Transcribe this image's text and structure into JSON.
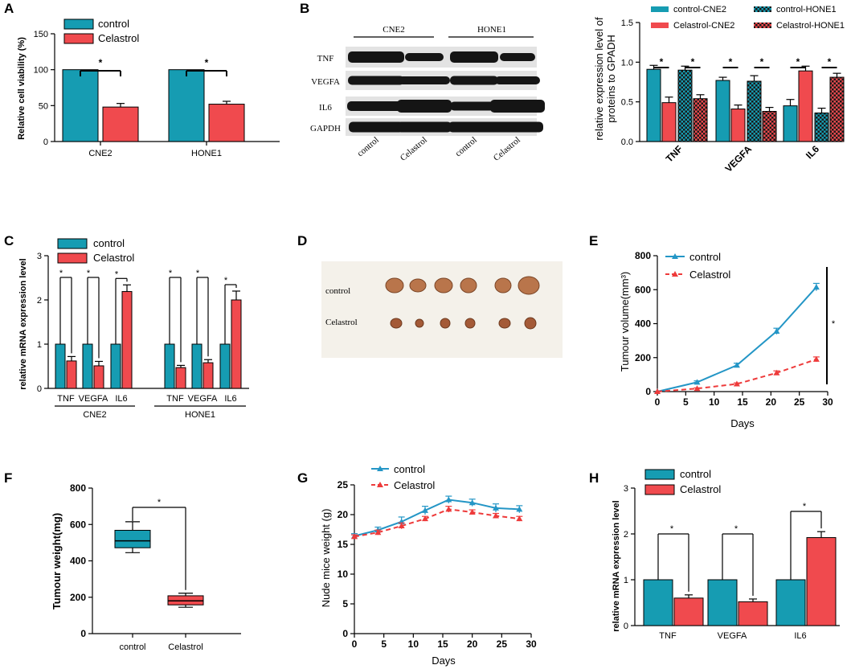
{
  "panels": {
    "A": "A",
    "B": "B",
    "C": "C",
    "D": "D",
    "E": "E",
    "F": "F",
    "G": "G",
    "H": "H"
  },
  "colors": {
    "control": "#169cb2",
    "celastrol": "#f04a4e",
    "line_control": "#2496c6",
    "line_celastrol": "#ee3b3b"
  },
  "chart_data": [
    {
      "id": "A",
      "type": "bar",
      "title": "",
      "ylabel": "Relative cell viability (%)",
      "categories": [
        "CNE2",
        "HONE1"
      ],
      "series": [
        {
          "name": "control",
          "values": [
            100,
            100
          ],
          "errors": [
            0,
            0
          ]
        },
        {
          "name": "Celastrol",
          "values": [
            48,
            52
          ],
          "errors": [
            5,
            4
          ]
        }
      ],
      "ylim": [
        0,
        150
      ],
      "yticks": [
        0,
        50,
        100,
        150
      ],
      "significance": [
        "*",
        "*"
      ]
    },
    {
      "id": "B_blot",
      "type": "table",
      "cell_lines": [
        "CNE2",
        "HONE1"
      ],
      "rows": [
        "TNF",
        "VEGFA",
        "IL6",
        "GAPDH"
      ],
      "lanes": [
        "control",
        "Celastrol",
        "control",
        "Celastrol"
      ]
    },
    {
      "id": "B",
      "type": "bar",
      "ylabel": "relative expression level of proteins to GPADH",
      "categories": [
        "TNF",
        "VEGFA",
        "IL6"
      ],
      "series": [
        {
          "name": "control-CNE2",
          "values": [
            0.91,
            0.77,
            0.45
          ],
          "errors": [
            0.05,
            0.04,
            0.08
          ]
        },
        {
          "name": "Celastrol-CNE2",
          "values": [
            0.49,
            0.41,
            0.89
          ],
          "errors": [
            0.07,
            0.05,
            0.06
          ]
        },
        {
          "name": "control-HONE1",
          "values": [
            0.9,
            0.76,
            0.36
          ],
          "errors": [
            0.05,
            0.07,
            0.06
          ]
        },
        {
          "name": "Celastrol-HONE1",
          "values": [
            0.54,
            0.38,
            0.81
          ],
          "errors": [
            0.05,
            0.05,
            0.05
          ]
        }
      ],
      "ylim": [
        0,
        1.5
      ],
      "yticks": [
        "0.0",
        "0.5",
        "1.0",
        "1.5"
      ],
      "significance": [
        "*",
        "*",
        "*",
        "*",
        "*",
        "*"
      ]
    },
    {
      "id": "C",
      "type": "bar",
      "ylabel": "relative mRNA expression level",
      "categories": [
        "TNF",
        "VEGFA",
        "IL6",
        "TNF",
        "VEGFA",
        "IL6"
      ],
      "groups": [
        "CNE2",
        "HONE1"
      ],
      "series": [
        {
          "name": "control",
          "values": [
            1,
            1,
            1,
            1,
            1,
            1
          ],
          "errors": [
            0,
            0,
            0,
            0,
            0,
            0
          ]
        },
        {
          "name": "Celastrol",
          "values": [
            0.62,
            0.51,
            2.19,
            0.47,
            0.58,
            2.0
          ],
          "errors": [
            0.1,
            0.1,
            0.15,
            0.05,
            0.07,
            0.2
          ]
        }
      ],
      "ylim": [
        0,
        3
      ],
      "yticks": [
        0,
        1,
        2,
        3
      ],
      "significance": [
        "*",
        "*",
        "*",
        "*",
        "*",
        "*"
      ]
    },
    {
      "id": "D",
      "type": "table",
      "rows": [
        "control",
        "Celastrol"
      ]
    },
    {
      "id": "E",
      "type": "line",
      "xlabel": "Days",
      "ylabel": "Tumour volume(mm³)",
      "x": [
        0,
        7,
        14,
        21,
        28
      ],
      "series": [
        {
          "name": "control",
          "values": [
            0,
            55,
            155,
            355,
            615
          ],
          "errors": [
            0,
            8,
            12,
            18,
            22
          ]
        },
        {
          "name": "Celastrol",
          "values": [
            0,
            18,
            45,
            110,
            190
          ],
          "errors": [
            0,
            4,
            6,
            12,
            14
          ]
        }
      ],
      "xlim": [
        0,
        30
      ],
      "ylim": [
        0,
        800
      ],
      "xticks": [
        0,
        5,
        10,
        15,
        20,
        25,
        30
      ],
      "yticks": [
        0,
        200,
        400,
        600,
        800
      ],
      "significance": "*"
    },
    {
      "id": "F",
      "type": "box",
      "ylabel": "Tumour weight(mg)",
      "categories": [
        "control",
        "Celastrol"
      ],
      "boxes": [
        {
          "min": 445,
          "q1": 472,
          "median": 510,
          "q3": 568,
          "max": 615
        },
        {
          "min": 145,
          "q1": 158,
          "median": 180,
          "q3": 208,
          "max": 222
        }
      ],
      "ylim": [
        0,
        800
      ],
      "yticks": [
        0,
        200,
        400,
        600,
        800
      ],
      "significance": "*"
    },
    {
      "id": "G",
      "type": "line",
      "xlabel": "Days",
      "ylabel": "Nude mice weight (g)",
      "x": [
        0,
        4,
        8,
        12,
        16,
        20,
        24,
        28
      ],
      "series": [
        {
          "name": "control",
          "values": [
            16.4,
            17.4,
            18.8,
            20.7,
            22.5,
            22.0,
            21.1,
            20.9
          ],
          "errors": [
            0.4,
            0.5,
            0.8,
            0.7,
            0.6,
            0.6,
            0.7,
            0.6
          ]
        },
        {
          "name": "Celastrol",
          "values": [
            16.3,
            17.0,
            18.1,
            19.3,
            20.9,
            20.4,
            19.8,
            19.3
          ],
          "errors": [
            0.3,
            0.4,
            0.5,
            0.4,
            0.5,
            0.4,
            0.4,
            0.4
          ]
        }
      ],
      "xlim": [
        0,
        30
      ],
      "ylim": [
        0,
        25
      ],
      "xticks": [
        0,
        5,
        10,
        15,
        20,
        25,
        30
      ],
      "yticks": [
        0,
        5,
        10,
        15,
        20,
        25
      ]
    },
    {
      "id": "H",
      "type": "bar",
      "ylabel": "relative mRNA expression level",
      "categories": [
        "TNF",
        "VEGFA",
        "IL6"
      ],
      "series": [
        {
          "name": "control",
          "values": [
            1,
            1,
            1
          ],
          "errors": [
            0,
            0,
            0
          ]
        },
        {
          "name": "Celastrol",
          "values": [
            0.6,
            0.52,
            1.92
          ],
          "errors": [
            0.07,
            0.06,
            0.13
          ]
        }
      ],
      "ylim": [
        0,
        3
      ],
      "yticks": [
        0,
        1,
        2,
        3
      ],
      "significance": [
        "*",
        "*",
        "*"
      ]
    }
  ]
}
